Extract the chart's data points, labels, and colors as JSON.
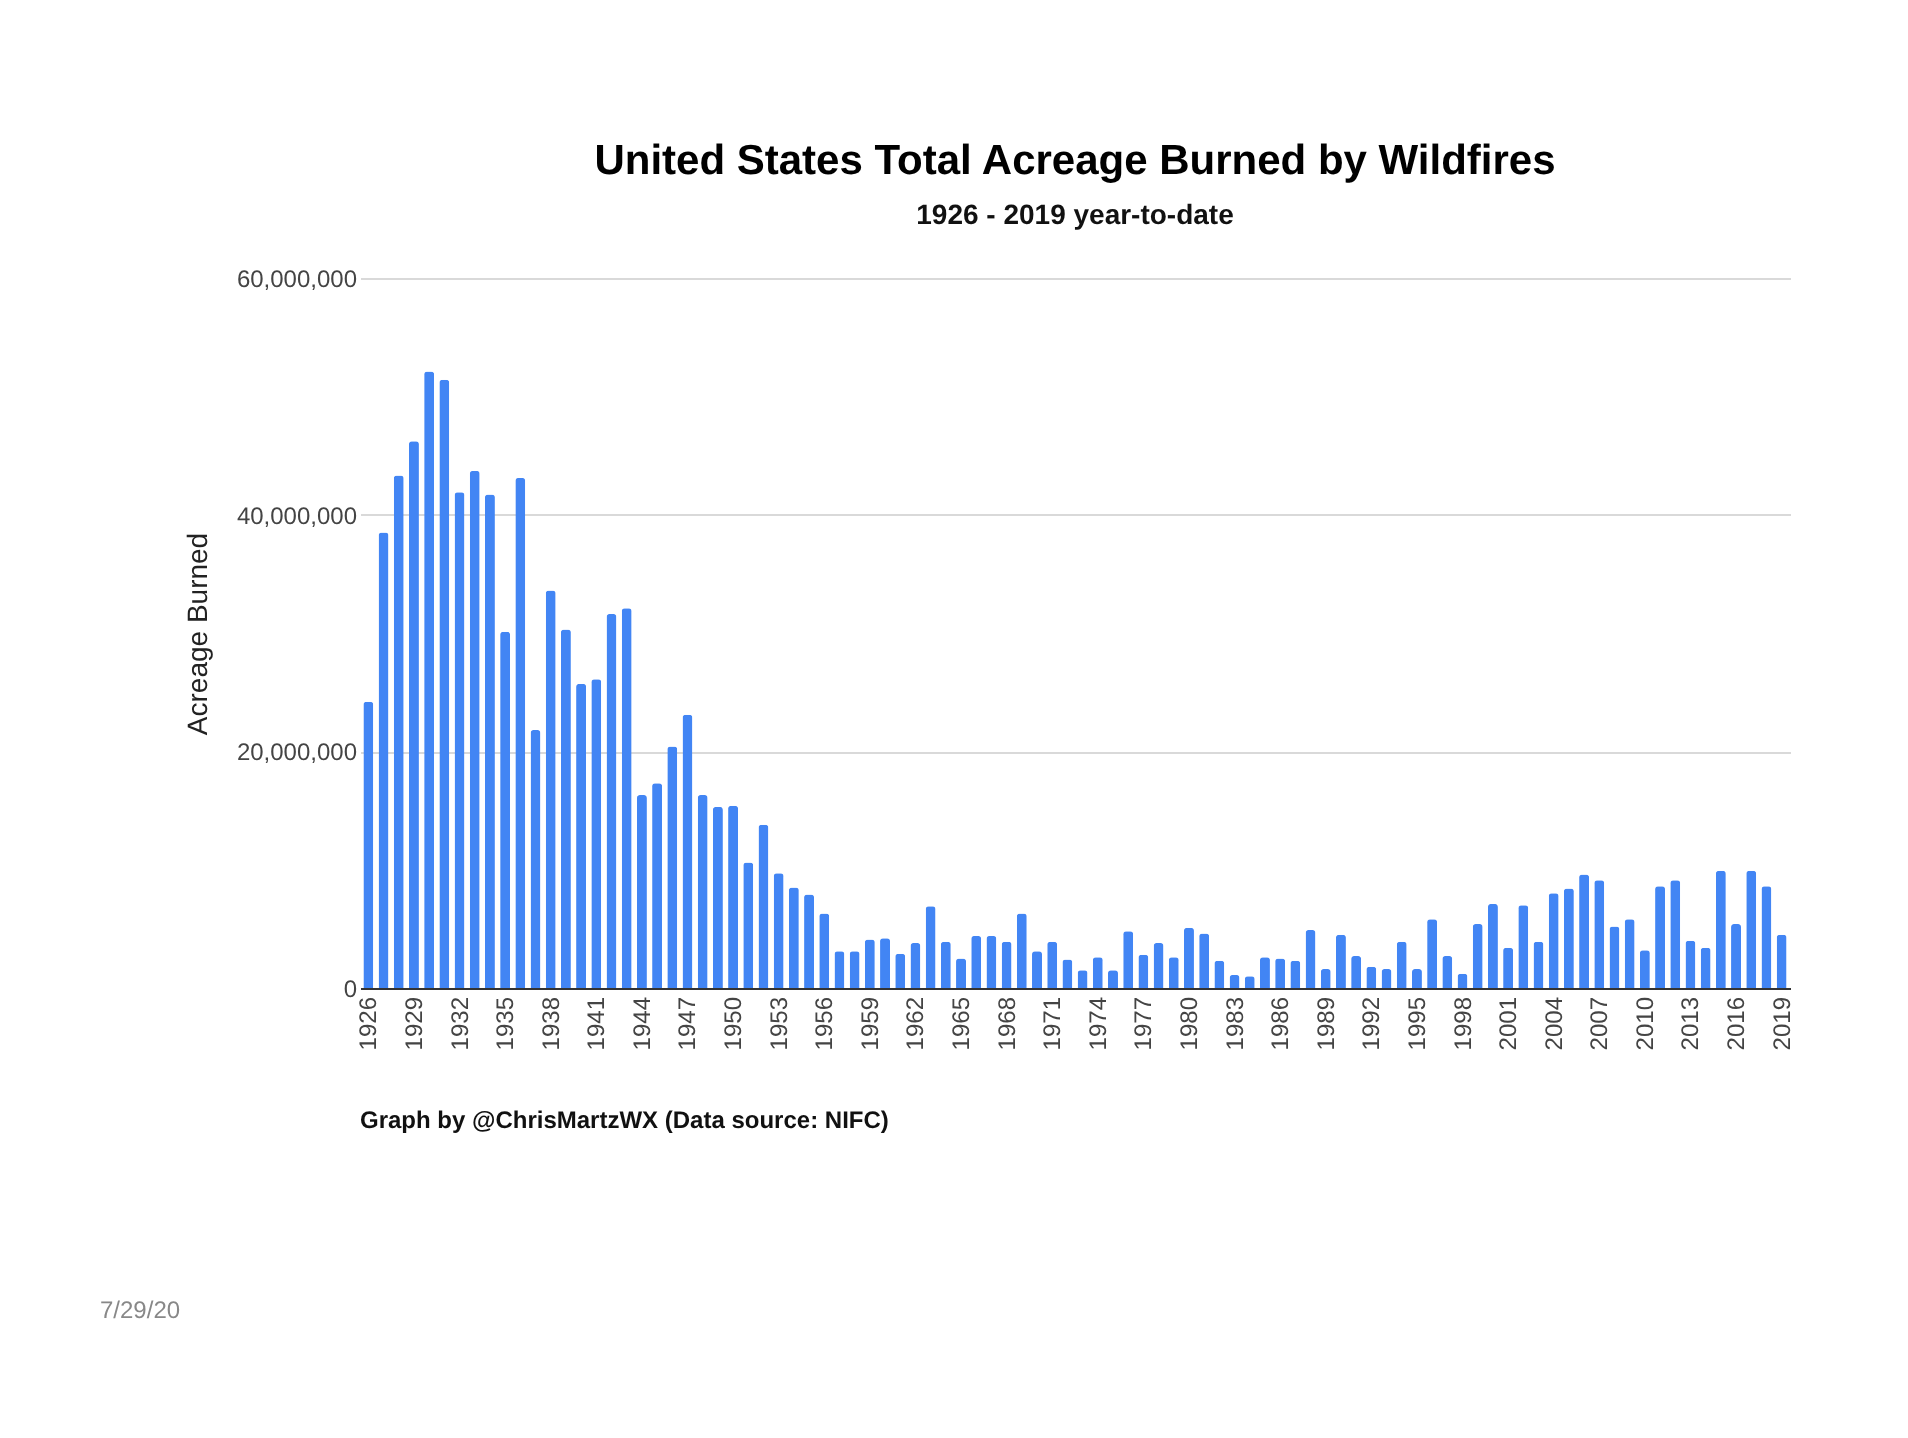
{
  "chart_data": {
    "type": "bar",
    "title": "United States Total Acreage Burned by Wildfires",
    "subtitle": "1926 - 2019 year-to-date",
    "ylabel": "Acreage Burned",
    "categories": [
      "1926",
      null,
      null,
      "1929",
      null,
      null,
      "1932",
      null,
      null,
      "1935",
      null,
      null,
      "1938",
      null,
      null,
      "1941",
      null,
      null,
      "1944",
      null,
      null,
      "1947",
      null,
      null,
      "1950",
      null,
      null,
      "1953",
      null,
      null,
      "1956",
      null,
      null,
      "1959",
      null,
      null,
      "1962",
      null,
      null,
      "1965",
      null,
      null,
      "1968",
      null,
      null,
      "1971",
      null,
      null,
      "1974",
      null,
      null,
      "1977",
      null,
      null,
      "1980",
      null,
      null,
      "1983",
      null,
      null,
      "1986",
      null,
      null,
      "1989",
      null,
      null,
      "1992",
      null,
      null,
      "1995",
      null,
      null,
      "1998",
      null,
      null,
      "2001",
      null,
      null,
      "2004",
      null,
      null,
      "2007",
      null,
      null,
      "2010",
      null,
      null,
      "2013",
      null,
      null,
      "2016",
      null,
      null,
      "2019"
    ],
    "series": [
      {
        "color": "#4285f4",
        "values": [
          24200000,
          38500000,
          43300000,
          46200000,
          52100000,
          51400000,
          41900000,
          43700000,
          41700000,
          30100000,
          43100000,
          21800000,
          33600000,
          30300000,
          25700000,
          26100000,
          31600000,
          32100000,
          16300000,
          17300000,
          20400000,
          23100000,
          16300000,
          15300000,
          15400000,
          10600000,
          13800000,
          9700000,
          8500000,
          7900000,
          6300000,
          3100000,
          3100000,
          4100000,
          4200000,
          2900000,
          3800000,
          6900000,
          3900000,
          2500000,
          4400000,
          4400000,
          3900000,
          6300000,
          3100000,
          3900000,
          2400000,
          1500000,
          2600000,
          1500000,
          4800000,
          2800000,
          3800000,
          2600000,
          5100000,
          4600000,
          2300000,
          1100000,
          1000000,
          2600000,
          2500000,
          2300000,
          4900000,
          1600000,
          4500000,
          2700000,
          1800000,
          1600000,
          3900000,
          1600000,
          5800000,
          2700000,
          1200000,
          5400000,
          7100000,
          3400000,
          7000000,
          3900000,
          8000000,
          8400000,
          9600000,
          9100000,
          5200000,
          5800000,
          3200000,
          8600000,
          9100000,
          4000000,
          3400000,
          9900000,
          5400000,
          9900000,
          8600000,
          4500000
        ]
      }
    ],
    "ylim": [
      0,
      60000000
    ],
    "yticks": [
      0,
      {
        "value": 20000000,
        "label": "20,000,000"
      },
      {
        "value": 40000000,
        "label": "40,000,000"
      },
      {
        "value": 60000000,
        "label": "60,000,000"
      }
    ],
    "grid": "y",
    "legend": false,
    "annotations": [
      "Graph by @ChrisMartzWX (Data source: NIFC)",
      "7/29/20"
    ]
  }
}
